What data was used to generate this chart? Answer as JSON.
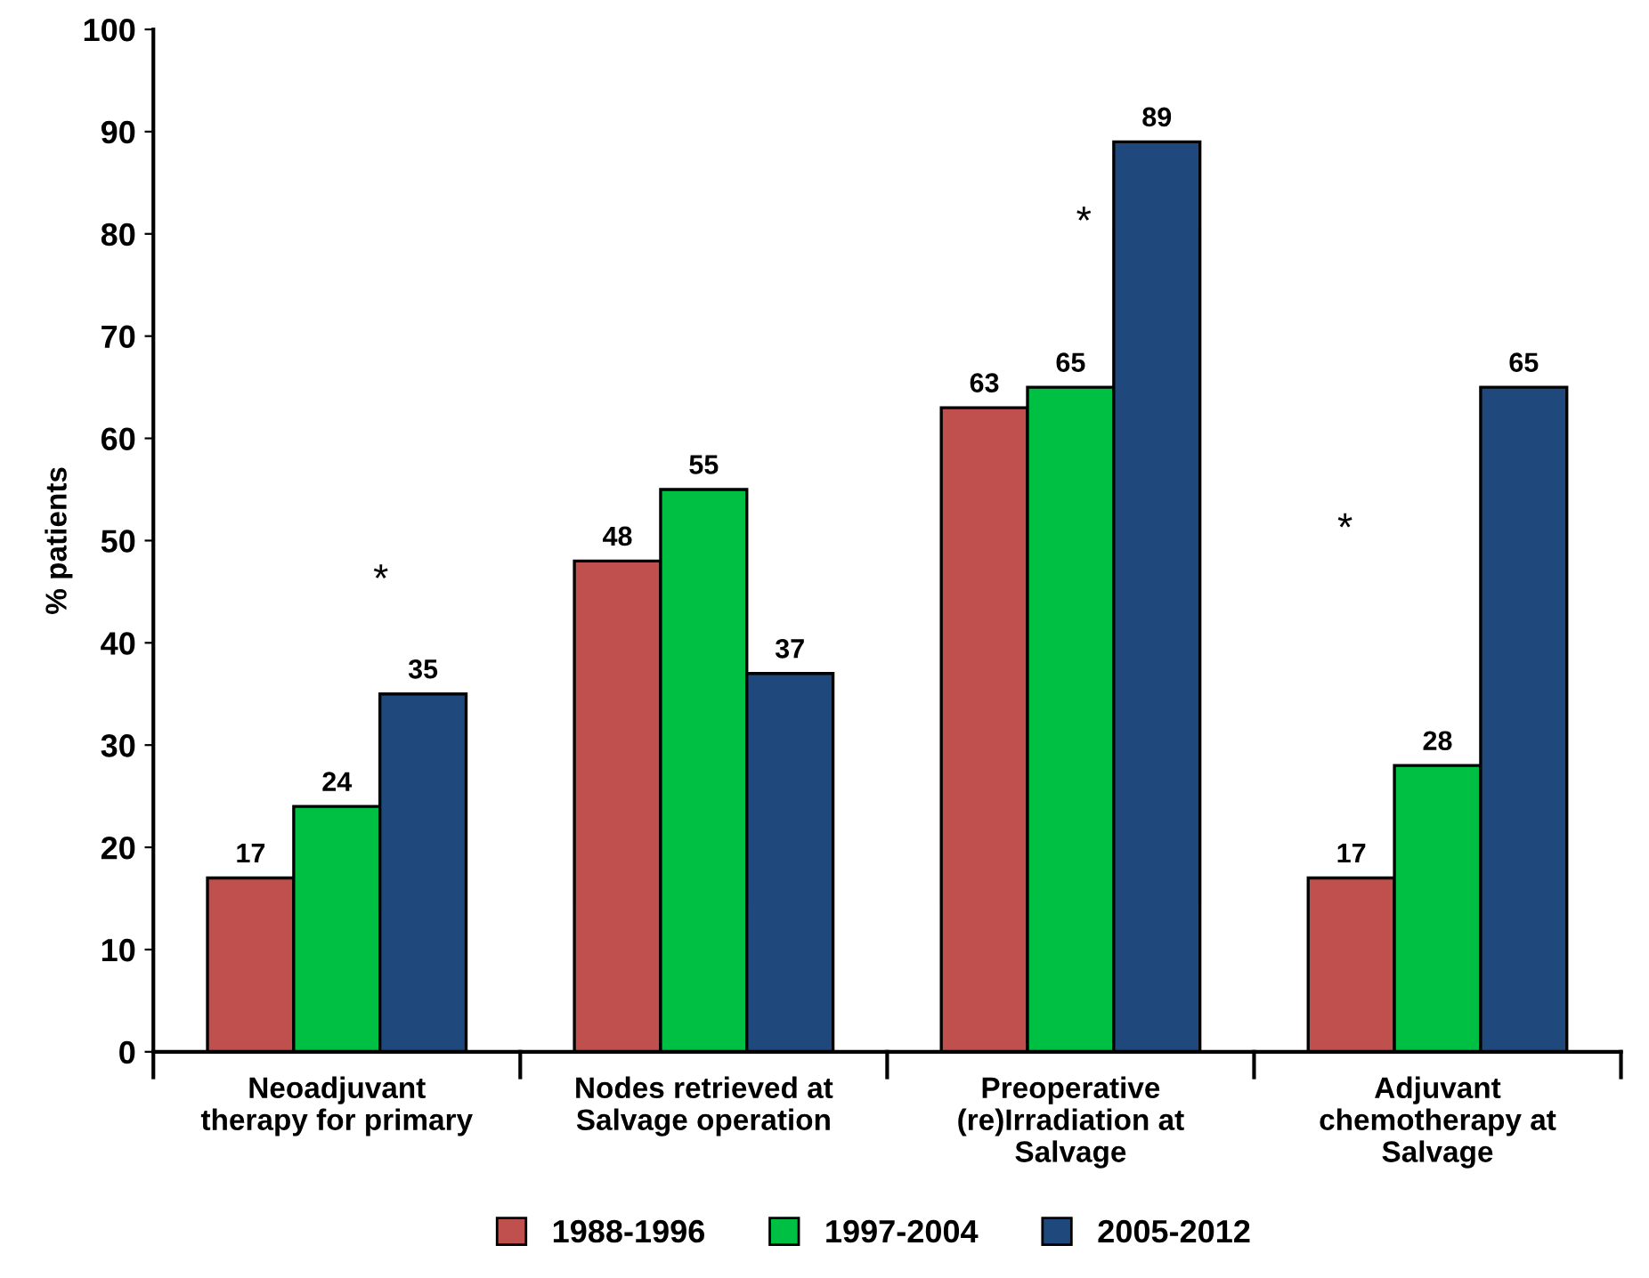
{
  "chart_data": {
    "type": "bar",
    "ylabel": "% patients",
    "categories": [
      "Neoadjuvant\ntherapy for primary",
      "Nodes retrieved at\nSalvage operation",
      "Preoperative\n(re)Irradiation at\nSalvage",
      "Adjuvant\nchemotherapy at\nSalvage"
    ],
    "series": [
      {
        "name": "1988-1996",
        "color": "#c0504d",
        "values": [
          17,
          48,
          63,
          17
        ]
      },
      {
        "name": "1997-2004",
        "color": "#00c044",
        "values": [
          24,
          55,
          65,
          28
        ]
      },
      {
        "name": "2005-2012",
        "color": "#1f497d",
        "values": [
          35,
          37,
          89,
          65
        ]
      }
    ],
    "ylim": [
      0,
      100
    ],
    "yticks": [
      0,
      10,
      20,
      30,
      40,
      50,
      60,
      70,
      80,
      90,
      100
    ],
    "data_labels": true,
    "legend": "bottom",
    "grid": false,
    "annotations": [
      "*",
      "*",
      "*"
    ]
  }
}
